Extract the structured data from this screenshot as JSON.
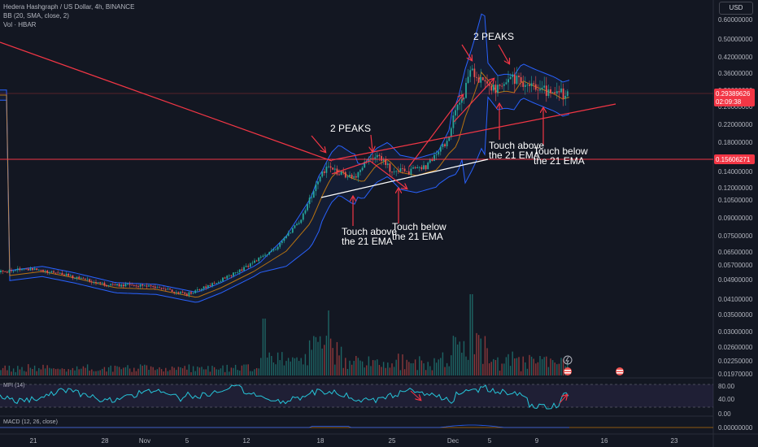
{
  "header": {
    "line1": "Hedera Hashgraph / US Dollar, 4h, BINANCE",
    "line2": "BB (20, SMA, close, 2)",
    "line3": "Vol · HBAR"
  },
  "currency_button": "USD",
  "mfi_label": "MFI (14)",
  "macd_label": "MACD (12, 26, close)",
  "colors": {
    "background": "#131722",
    "bull": "#26a69a",
    "bear": "#ef5350",
    "band": "#2962ff",
    "annotation": "#f23645",
    "ema": "#ff9800",
    "mfi": "#26c6da"
  },
  "price_axis": {
    "ticks": [
      "0.60000000",
      "0.50000000",
      "0.42000000",
      "0.36000000",
      "0.30000000",
      "0.26000000",
      "0.22000000",
      "0.18000000",
      "0.14000000",
      "0.12000000",
      "0.10500000",
      "0.09000000",
      "0.07500000",
      "0.06500000",
      "0.05700000",
      "0.04900000",
      "0.04100000",
      "0.03500000",
      "0.03000000",
      "0.02600000",
      "0.02250000",
      "0.01970000"
    ],
    "current_price": "0.29389626",
    "countdown": "02:09:38",
    "level_price": "0.15606271"
  },
  "mfi_axis": {
    "ticks": [
      "80.00",
      "40.00",
      "0.00"
    ]
  },
  "macd_axis": {
    "ticks": [
      "0.00000000"
    ]
  },
  "time_axis": {
    "ticks": [
      "21",
      "28",
      "Nov",
      "5",
      "12",
      "18",
      "25",
      "Dec",
      "5",
      "9",
      "16",
      "23"
    ]
  },
  "annotations": {
    "peaks_left": "2 PEAKS",
    "peaks_right": "2 PEAKS",
    "touch_above_1": [
      "Touch above",
      "the 21 EMA"
    ],
    "touch_below_1": [
      "Touch below",
      "the 21 EMA"
    ],
    "touch_above_2": [
      "Touch above",
      "the 21 EMA"
    ],
    "touch_below_2": [
      "Touch below",
      "the 21 EMA"
    ]
  },
  "chart_data": {
    "type": "line",
    "title": "Hedera Hashgraph / US Dollar, 4h, BINANCE",
    "scale": "log",
    "ylim": [
      0.0197,
      0.6
    ],
    "x": [
      "Oct 21",
      "Oct 28",
      "Nov 1",
      "Nov 5",
      "Nov 12",
      "Nov 18",
      "Nov 25",
      "Dec 1",
      "Dec 5",
      "Dec 9"
    ],
    "series": [
      {
        "name": "HBAR/USD",
        "values": [
          0.052,
          0.05,
          0.048,
          0.045,
          0.06,
          0.15,
          0.14,
          0.2,
          0.38,
          0.294
        ]
      }
    ]
  }
}
